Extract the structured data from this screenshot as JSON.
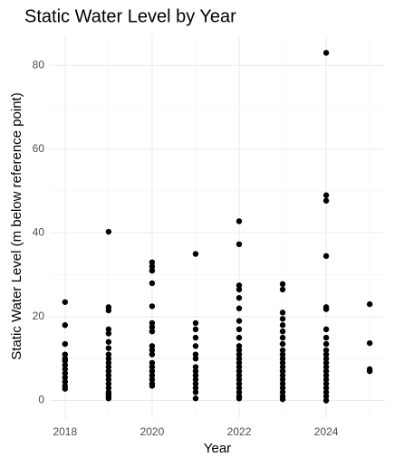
{
  "chart_data": {
    "type": "scatter",
    "title": "Static Water Level by Year",
    "x_label": "Year",
    "y_label": "Static Water Level (m below reference point)",
    "color": "#000000",
    "grid": true,
    "xlim": [
      2017.65,
      2025.35
    ],
    "ylim": [
      -4.2,
      87.4
    ],
    "xticks": [
      2018,
      2020,
      2022,
      2024
    ],
    "yticks": [
      0,
      20,
      40,
      60,
      80
    ],
    "minor_xticks": [
      2019,
      2021,
      2023,
      2025
    ],
    "minor_yticks": [
      10,
      30,
      50,
      70
    ],
    "x": [
      2018,
      2018,
      2018,
      2018,
      2018,
      2018,
      2018,
      2018,
      2018,
      2018,
      2018,
      2018,
      2018,
      2019,
      2019,
      2019,
      2019,
      2019,
      2019,
      2019,
      2019,
      2019,
      2019,
      2019,
      2019,
      2019,
      2019,
      2019,
      2019,
      2019,
      2019,
      2019,
      2019,
      2020,
      2020,
      2020,
      2020,
      2020,
      2020,
      2020,
      2020,
      2020,
      2020,
      2020,
      2020,
      2020,
      2020,
      2020,
      2020,
      2020,
      2020,
      2021,
      2021,
      2021,
      2021,
      2021,
      2021,
      2021,
      2021,
      2021,
      2021,
      2021,
      2021,
      2021,
      2021,
      2021,
      2022,
      2022,
      2022,
      2022,
      2022,
      2022,
      2022,
      2022,
      2022,
      2022,
      2022,
      2022,
      2022,
      2022,
      2022,
      2022,
      2022,
      2022,
      2022,
      2022,
      2022,
      2022,
      2022,
      2023,
      2023,
      2023,
      2023,
      2023,
      2023,
      2023,
      2023,
      2023,
      2023,
      2023,
      2023,
      2023,
      2023,
      2023,
      2023,
      2023,
      2023,
      2023,
      2023,
      2023,
      2024,
      2024,
      2024,
      2024,
      2024,
      2024,
      2024,
      2024,
      2024,
      2024,
      2024,
      2024,
      2024,
      2024,
      2024,
      2024,
      2024,
      2024,
      2024,
      2024,
      2024,
      2024,
      2025,
      2025,
      2025,
      2025
    ],
    "y": [
      23.5,
      18,
      13.5,
      11,
      9.5,
      8.5,
      7.5,
      6.5,
      5.5,
      4.5,
      3.5,
      2.8,
      10,
      40.3,
      22.3,
      21.5,
      17,
      16,
      14,
      12.5,
      11,
      10,
      9,
      8,
      7,
      6,
      5,
      4,
      3,
      2,
      1.5,
      1,
      0.5,
      33,
      32,
      31,
      28,
      22.5,
      18.5,
      17.5,
      16.5,
      13,
      12,
      11,
      9,
      8,
      7,
      6,
      5,
      4,
      3.5,
      35,
      18.5,
      17,
      15,
      13,
      11,
      10,
      8,
      7,
      6,
      5,
      4,
      3,
      2,
      0.5,
      42.8,
      37.3,
      27.5,
      26.5,
      24.5,
      22,
      19,
      17,
      15,
      13,
      12,
      11,
      10,
      9,
      8,
      7,
      6,
      5,
      4,
      3,
      2,
      1,
      0.5,
      27.8,
      26.5,
      21,
      19.5,
      18,
      16.5,
      15,
      13.5,
      12,
      11,
      10,
      9,
      8,
      7,
      6,
      5,
      4,
      3,
      2,
      1,
      0.3,
      83,
      49,
      47.7,
      34.5,
      22.3,
      21.8,
      17,
      15,
      13.5,
      12,
      11,
      10,
      9,
      8,
      7,
      6,
      5,
      4,
      3,
      2,
      1,
      0,
      23,
      13.7,
      7.5,
      7
    ]
  }
}
